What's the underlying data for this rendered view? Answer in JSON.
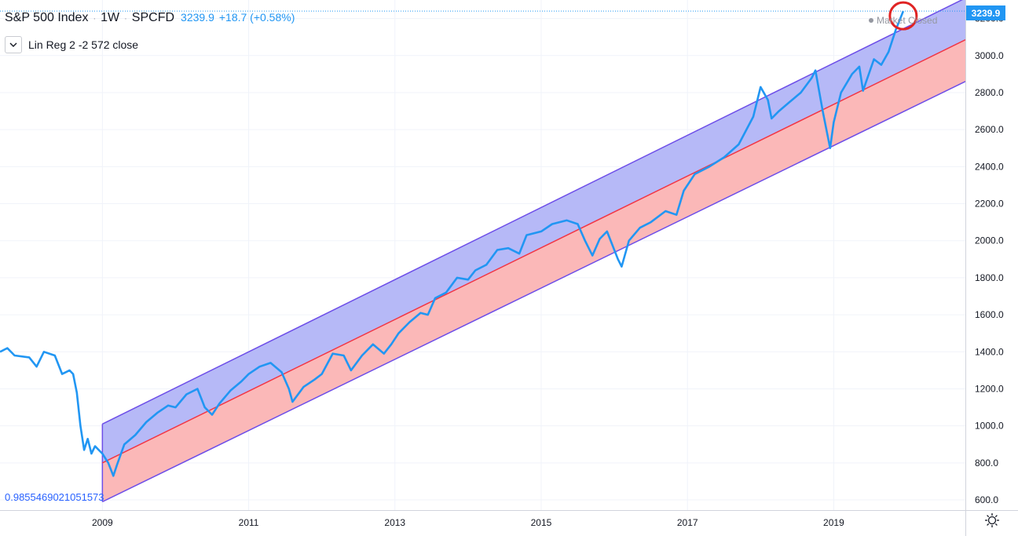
{
  "header": {
    "symbol_name": "S&P 500 Index",
    "interval": "1W",
    "exchange": "SPCFD",
    "last_price": "3239.9",
    "change": "+18.7 (+0.58%)"
  },
  "study": {
    "label": "Lin Reg 2 -2 572 close",
    "collapse_icon": "chevron-down-icon"
  },
  "correlation_value": "0.9855469021051573",
  "market_status": "Market Closed",
  "price_tag": "3239.9",
  "settings_icon": "gear-icon",
  "colors": {
    "price_line": "#2196f3",
    "channel_upper_fill": "#b2b5f7",
    "channel_lower_fill": "#fbb4b4",
    "channel_border": "#6d4ee8",
    "regression_line": "#f23645",
    "highlight_circle": "#e02424"
  },
  "chart_data": {
    "type": "line",
    "title": "S&P 500 Index",
    "x_axis_ticks": [
      "2009",
      "2011",
      "2013",
      "2015",
      "2017",
      "2019"
    ],
    "y_axis_ticks": [
      600,
      800,
      1000,
      1200,
      1400,
      1600,
      1800,
      2000,
      2200,
      2400,
      2600,
      2800,
      3000,
      3200
    ],
    "y_axis_tick_labels": [
      "600.0",
      "800.0",
      "1000.0",
      "1200.0",
      "1400.0",
      "1600.0",
      "1800.0",
      "2000.0",
      "2200.0",
      "2400.0",
      "2600.0",
      "2800.0",
      "3000.0",
      "3200.0"
    ],
    "ylim": [
      545,
      3300
    ],
    "xlim": [
      2007.6,
      2020.8
    ],
    "grid": true,
    "price_axis": "right",
    "series": [
      {
        "name": "S&P 500 Index",
        "x": [
          2007.6,
          2007.7,
          2007.8,
          2008.0,
          2008.1,
          2008.2,
          2008.35,
          2008.45,
          2008.55,
          2008.6,
          2008.65,
          2008.7,
          2008.75,
          2008.8,
          2008.85,
          2008.9,
          2009.0,
          2009.08,
          2009.15,
          2009.2,
          2009.3,
          2009.45,
          2009.6,
          2009.75,
          2009.9,
          2010.0,
          2010.15,
          2010.3,
          2010.4,
          2010.5,
          2010.6,
          2010.75,
          2010.9,
          2011.0,
          2011.15,
          2011.3,
          2011.45,
          2011.55,
          2011.6,
          2011.75,
          2011.9,
          2012.0,
          2012.15,
          2012.3,
          2012.4,
          2012.55,
          2012.7,
          2012.85,
          2012.95,
          2013.05,
          2013.2,
          2013.35,
          2013.45,
          2013.55,
          2013.7,
          2013.85,
          2014.0,
          2014.1,
          2014.25,
          2014.4,
          2014.55,
          2014.7,
          2014.8,
          2014.9,
          2015.0,
          2015.15,
          2015.35,
          2015.5,
          2015.6,
          2015.7,
          2015.8,
          2015.9,
          2016.05,
          2016.1,
          2016.2,
          2016.35,
          2016.5,
          2016.7,
          2016.85,
          2016.95,
          2017.1,
          2017.3,
          2017.5,
          2017.7,
          2017.9,
          2018.0,
          2018.1,
          2018.15,
          2018.25,
          2018.4,
          2018.55,
          2018.7,
          2018.75,
          2018.85,
          2018.95,
          2019.0,
          2019.1,
          2019.25,
          2019.35,
          2019.4,
          2019.55,
          2019.65,
          2019.75,
          2019.85,
          2019.95
        ],
        "values": [
          1400,
          1420,
          1380,
          1370,
          1320,
          1400,
          1380,
          1280,
          1300,
          1280,
          1180,
          1000,
          870,
          930,
          850,
          890,
          850,
          800,
          730,
          790,
          900,
          950,
          1020,
          1070,
          1110,
          1100,
          1170,
          1200,
          1100,
          1060,
          1120,
          1190,
          1240,
          1280,
          1320,
          1340,
          1290,
          1200,
          1130,
          1210,
          1250,
          1280,
          1390,
          1380,
          1300,
          1380,
          1440,
          1390,
          1440,
          1500,
          1560,
          1610,
          1600,
          1690,
          1720,
          1800,
          1790,
          1840,
          1870,
          1950,
          1960,
          1930,
          2030,
          2040,
          2050,
          2090,
          2110,
          2090,
          2000,
          1920,
          2010,
          2050,
          1900,
          1860,
          2000,
          2070,
          2100,
          2160,
          2140,
          2270,
          2360,
          2400,
          2450,
          2520,
          2670,
          2830,
          2760,
          2660,
          2700,
          2750,
          2800,
          2880,
          2920,
          2700,
          2500,
          2640,
          2800,
          2900,
          2940,
          2810,
          2980,
          2950,
          3020,
          3140,
          3240
        ]
      },
      {
        "name": "Lin Reg 2 -2 572 close",
        "x": [
          2009.0,
          2020.8
        ],
        "regression": [
          800,
          3085
        ],
        "upper": [
          1010,
          3310
        ],
        "lower": [
          590,
          2860
        ]
      }
    ]
  }
}
